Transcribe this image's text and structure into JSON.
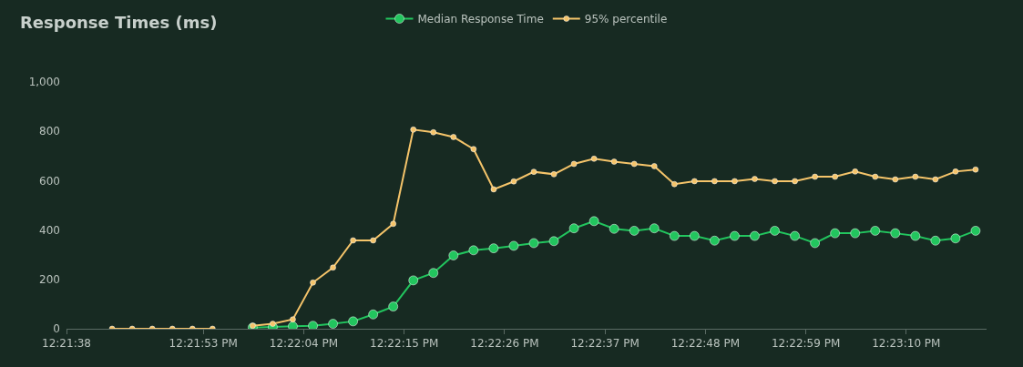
{
  "chart_data": {
    "type": "line",
    "title": "Response Times (ms)",
    "x": [
      12.361944,
      12.362556,
      12.363167,
      12.363778,
      12.364389,
      12.365,
      12.365611,
      12.366222,
      12.366833,
      12.367444,
      12.368056,
      12.368667,
      12.369278,
      12.369889,
      12.3705,
      12.371111,
      12.371722,
      12.372333,
      12.372944,
      12.373556,
      12.374167,
      12.374778,
      12.375389,
      12.376,
      12.376611,
      12.377222,
      12.377833,
      12.378444,
      12.379056,
      12.379667,
      12.380278,
      12.380889,
      12.3815,
      12.382111,
      12.382722,
      12.383333,
      12.383944,
      12.384556,
      12.385167,
      12.385778,
      12.386389,
      12.387,
      12.387611,
      12.388222
    ],
    "series": [
      {
        "name": "Median Response Time",
        "color": "#22c55e",
        "values": [
          null,
          null,
          null,
          null,
          null,
          null,
          null,
          5,
          7,
          10,
          12,
          20,
          30,
          58,
          90,
          196,
          226,
          297,
          318,
          326,
          336,
          347,
          355,
          407,
          436,
          405,
          397,
          407,
          376,
          376,
          357,
          376,
          376,
          397,
          376,
          347,
          387,
          387,
          397,
          387,
          376,
          357,
          366,
          397
        ]
      },
      {
        "name": "95% percentile",
        "color": "#f5c46a",
        "values": [
          0,
          0,
          0,
          0,
          0,
          0,
          null,
          12,
          20,
          38,
          187,
          248,
          358,
          358,
          425,
          807,
          796,
          777,
          728,
          565,
          597,
          636,
          626,
          668,
          689,
          677,
          668,
          659,
          586,
          598,
          598,
          598,
          607,
          598,
          598,
          616,
          616,
          637,
          616,
          605,
          616,
          605,
          637,
          645
        ]
      }
    ],
    "xlim": [
      12.360556,
      12.388556
    ],
    "xticks": [
      {
        "value": 12.360556,
        "label": "12:21:38"
      },
      {
        "value": 12.364722,
        "label": "12:21:53 PM"
      },
      {
        "value": 12.367778,
        "label": "12:22:04 PM"
      },
      {
        "value": 12.370833,
        "label": "12:22:15 PM"
      },
      {
        "value": 12.373889,
        "label": "12:22:26 PM"
      },
      {
        "value": 12.376944,
        "label": "12:22:37 PM"
      },
      {
        "value": 12.38,
        "label": "12:22:48 PM"
      },
      {
        "value": 12.383056,
        "label": "12:22:59 PM"
      },
      {
        "value": 12.386111,
        "label": "12:23:10 PM"
      }
    ],
    "ylim": [
      0,
      1000
    ],
    "yticks": [
      0,
      200,
      400,
      600,
      800,
      {
        "value": 1000,
        "label": "1,000"
      }
    ],
    "legend": "top",
    "marker": "circle",
    "line_style": "solid",
    "grid": false
  }
}
